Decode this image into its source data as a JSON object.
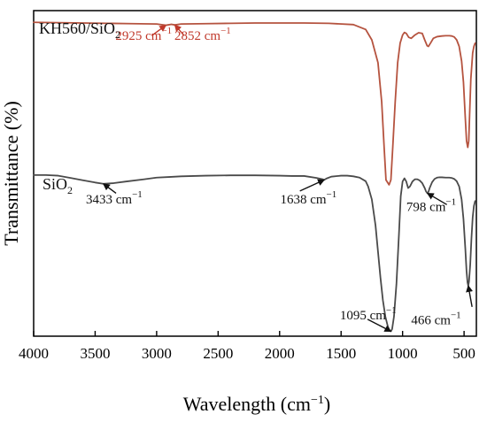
{
  "chart_data": {
    "type": "line",
    "xlabel": "Wavelength (cm",
    "xlabel_sup": "−1",
    "xlabel_tail": ")",
    "ylabel": "Transmittance (%)",
    "xlim": [
      4000,
      400
    ],
    "x_reversed": true,
    "x_ticks": [
      4000,
      3500,
      3000,
      2500,
      2000,
      1500,
      1000,
      500
    ],
    "y_ticks_shown": false,
    "grid": false,
    "legend": "none",
    "series": [
      {
        "name": "KH560/SiO₂",
        "name_base": "KH560/SiO",
        "name_sub": "2",
        "color": "#b5533f",
        "x": [
          4000,
          3800,
          3600,
          3400,
          3200,
          3000,
          2925,
          2880,
          2852,
          2800,
          2600,
          2400,
          2200,
          2000,
          1800,
          1600,
          1400,
          1300,
          1250,
          1200,
          1170,
          1150,
          1135,
          1110,
          1095,
          1080,
          1060,
          1040,
          1020,
          1000,
          985,
          970,
          950,
          930,
          900,
          870,
          840,
          820,
          800,
          790,
          770,
          750,
          720,
          700,
          680,
          650,
          620,
          600,
          580,
          560,
          540,
          520,
          505,
          490,
          480,
          470,
          462,
          455,
          445,
          430,
          420,
          410
        ],
        "y": [
          96.4,
          96.3,
          96.2,
          96.1,
          96.0,
          95.9,
          95.5,
          95.8,
          95.6,
          95.9,
          96.0,
          96.1,
          96.2,
          96.2,
          96.2,
          96.1,
          95.7,
          94.2,
          91.0,
          84.0,
          72.0,
          58.0,
          48.0,
          46.5,
          48.0,
          58.0,
          72.0,
          84.0,
          90.0,
          92.5,
          93.3,
          93.0,
          91.8,
          91.5,
          92.5,
          93.2,
          93.0,
          91.0,
          89.2,
          89.0,
          90.2,
          91.5,
          92.0,
          92.1,
          92.2,
          92.3,
          92.3,
          92.2,
          91.9,
          91.0,
          89.0,
          84.5,
          78.0,
          67.0,
          60.0,
          58.0,
          60.0,
          68.0,
          79.0,
          87.0,
          89.0,
          90.0
        ]
      },
      {
        "name": "SiO₂",
        "name_base": "SiO",
        "name_sub": "2",
        "color": "#4a4a4a",
        "x": [
          4000,
          3900,
          3800,
          3700,
          3600,
          3500,
          3433,
          3350,
          3250,
          3100,
          3000,
          2900,
          2800,
          2600,
          2400,
          2200,
          2000,
          1900,
          1800,
          1700,
          1650,
          1638,
          1620,
          1580,
          1500,
          1450,
          1400,
          1350,
          1300,
          1280,
          1250,
          1220,
          1200,
          1180,
          1160,
          1140,
          1120,
          1105,
          1095,
          1085,
          1070,
          1050,
          1030,
          1015,
          1000,
          985,
          970,
          955,
          940,
          920,
          900,
          880,
          860,
          840,
          820,
          810,
          800,
          798,
          790,
          780,
          760,
          740,
          720,
          700,
          680,
          650,
          620,
          600,
          580,
          560,
          540,
          520,
          505,
          490,
          480,
          472,
          466,
          460,
          450,
          440,
          430,
          420,
          410
        ],
        "y": [
          49.5,
          49.5,
          49.3,
          48.6,
          47.9,
          47.2,
          46.8,
          47.0,
          47.5,
          48.2,
          48.7,
          48.9,
          49.1,
          49.3,
          49.4,
          49.4,
          49.3,
          49.2,
          49.2,
          48.6,
          48.2,
          48.0,
          48.4,
          49.0,
          49.3,
          49.3,
          49.1,
          48.7,
          47.6,
          46.0,
          42.0,
          34.0,
          26.0,
          18.0,
          11.0,
          6.0,
          3.0,
          1.6,
          1.5,
          2.2,
          6.0,
          16.0,
          31.0,
          43.0,
          47.5,
          48.5,
          47.5,
          45.5,
          46.0,
          47.5,
          48.2,
          48.2,
          47.8,
          47.0,
          45.5,
          44.5,
          44.0,
          43.9,
          44.3,
          45.5,
          47.3,
          48.3,
          48.7,
          48.8,
          48.8,
          48.7,
          48.7,
          48.6,
          48.3,
          47.6,
          46.0,
          42.0,
          36.0,
          27.0,
          20.0,
          16.5,
          15.5,
          16.8,
          22.0,
          30.0,
          36.5,
          40.0,
          41.5
        ]
      }
    ],
    "annotations": [
      {
        "id": "kh-2925",
        "text": "2925 cm",
        "sup": "−1",
        "color": "#c0392b",
        "tx": 3335,
        "ty": 91.1,
        "x": 2925,
        "y": 95.5,
        "lx": 3040,
        "ly": 92.3,
        "anchor": "start"
      },
      {
        "id": "kh-2852",
        "text": "2852 cm",
        "sup": "−1",
        "color": "#c0392b",
        "tx": 2855,
        "ty": 91.1,
        "x": 2852,
        "y": 95.6,
        "lx": 2775,
        "ly": 92.3,
        "anchor": "start"
      },
      {
        "id": "si-3433",
        "text": "3433 cm",
        "sup": "−1",
        "color": "#111111",
        "tx": 3575,
        "ty": 40.8,
        "x": 3433,
        "y": 46.8,
        "lx": 3330,
        "ly": 43.9,
        "anchor": "start"
      },
      {
        "id": "si-1638",
        "text": "1638 cm",
        "sup": "−1",
        "color": "#111111",
        "tx": 1995,
        "ty": 40.8,
        "x": 1638,
        "y": 48.0,
        "lx": 1835,
        "ly": 44.6,
        "anchor": "start"
      },
      {
        "id": "si-798",
        "text": "798 cm",
        "sup": "−1",
        "color": "#111111",
        "tx": 970,
        "ty": 38.4,
        "x": 798,
        "y": 43.9,
        "lx": 640,
        "ly": 40.4,
        "anchor": "start"
      },
      {
        "id": "si-1095",
        "text": "1095 cm",
        "sup": "−1",
        "color": "#111111",
        "tx": 1510,
        "ty": 5.2,
        "x": 1095,
        "y": 1.5,
        "lx": 1285,
        "ly": 5.2,
        "anchor": "start"
      },
      {
        "id": "si-466",
        "text": "466 cm",
        "sup": "−1",
        "color": "#111111",
        "tx": 930,
        "ty": 3.7,
        "x": 466,
        "y": 15.5,
        "lx": 435,
        "ly": 9.0,
        "anchor": "start"
      }
    ]
  }
}
